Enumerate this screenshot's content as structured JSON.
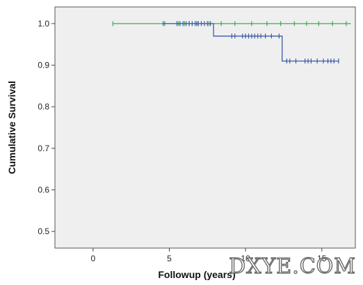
{
  "chart_data": {
    "type": "line",
    "xlabel": "Followup (years)",
    "ylabel": "Cumulative Survival",
    "xlim": [
      -2.5,
      17.2
    ],
    "ylim": [
      0.46,
      1.04
    ],
    "x_ticks": [
      0,
      5,
      10,
      15
    ],
    "x_tick_labels": [
      "0",
      "5",
      "10",
      "15"
    ],
    "y_ticks": [
      0.5,
      0.6,
      0.7,
      0.8,
      0.9,
      1.0
    ],
    "y_tick_labels": [
      "0.5",
      "0.6",
      "0.7",
      "0.8",
      "0.9",
      "1.0"
    ],
    "grid": false,
    "series": [
      {
        "color": "#3bab4f",
        "step": [
          [
            1.3,
            1.0
          ],
          [
            16.9,
            1.0
          ]
        ],
        "censored_x": [
          1.3,
          4.7,
          5.6,
          6.0,
          6.3,
          6.9,
          7.6,
          8.4,
          9.3,
          10.4,
          11.4,
          12.3,
          13.2,
          14.0,
          14.8,
          15.7,
          16.6
        ]
      },
      {
        "color": "#3b5aa8",
        "step": [
          [
            4.6,
            1.0
          ],
          [
            7.9,
            1.0
          ],
          [
            7.9,
            0.97
          ],
          [
            12.4,
            0.97
          ],
          [
            12.4,
            0.91
          ],
          [
            16.1,
            0.91
          ]
        ],
        "censored_x_top": [
          4.6,
          5.5,
          5.7,
          5.9,
          6.1,
          6.3,
          6.5,
          6.7,
          6.8,
          6.9,
          7.1,
          7.3,
          7.5,
          7.7
        ],
        "censored_x_mid": [
          9.1,
          9.3,
          9.8,
          10.0,
          10.2,
          10.4,
          10.6,
          10.8,
          11.0,
          11.3,
          11.7,
          12.2
        ],
        "censored_x_low": [
          12.7,
          12.9,
          13.3,
          13.9,
          14.1,
          14.3,
          14.7,
          15.1,
          15.4,
          15.6,
          15.8,
          16.1
        ]
      }
    ]
  },
  "watermark": "DXYE.COM"
}
